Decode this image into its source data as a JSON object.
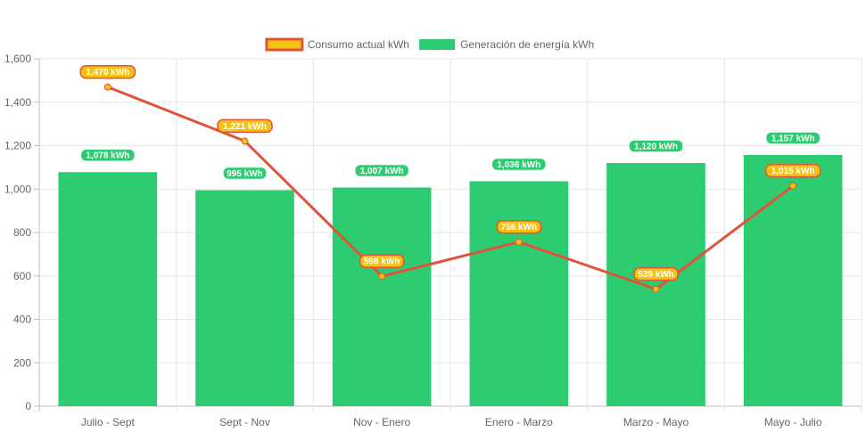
{
  "chart_data": {
    "type": "bar",
    "categories": [
      "Julio - Sept",
      "Sept - Nov",
      "Nov - Enero",
      "Enero - Marzo",
      "Marzo - Mayo",
      "Mayo - Julio"
    ],
    "ylim": [
      0,
      1600
    ],
    "yticks": [
      0,
      200,
      400,
      600,
      800,
      1000,
      1200,
      1400,
      1600
    ],
    "ytick_labels": [
      "0",
      "200",
      "400",
      "600",
      "800",
      "1,000",
      "1,200",
      "1,400",
      "1,600"
    ],
    "grid": true,
    "legend_position": "top-center",
    "series": [
      {
        "name": "Consumo actual kWh",
        "type": "line",
        "values": [
          1470,
          1221,
          598,
          756,
          539,
          1015
        ],
        "labels": [
          "1,470 kWh",
          "1,221 kWh",
          "598 kWh",
          "756 kWh",
          "539 kWh",
          "1,015 kWh"
        ],
        "color": "#e0533a",
        "fill_color": "#f5c211"
      },
      {
        "name": "Generación de energía kWh",
        "type": "bar",
        "values": [
          1078,
          995,
          1007,
          1036,
          1120,
          1157
        ],
        "labels": [
          "1,078 kWh",
          "995 kWh",
          "1,007 kWh",
          "1,036 kWh",
          "1,120 kWh",
          "1,157 kWh"
        ],
        "color": "#2ecc71"
      }
    ]
  }
}
